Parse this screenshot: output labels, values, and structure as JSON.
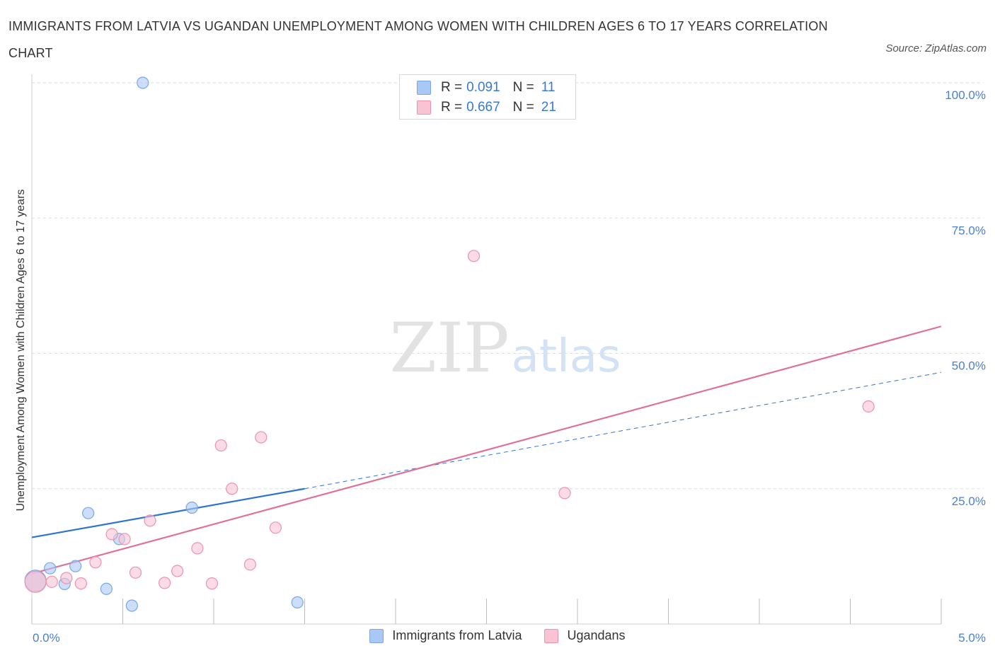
{
  "title": "IMMIGRANTS FROM LATVIA VS UGANDAN UNEMPLOYMENT AMONG WOMEN WITH CHILDREN AGES 6 TO 17 YEARS CORRELATION CHART",
  "source": "Source: ZipAtlas.com",
  "watermark": {
    "zip": "ZIP",
    "atlas": "atlas"
  },
  "legend_top": {
    "rows": [
      {
        "r_label": "R =",
        "r_value": "0.091",
        "n_label": "N =",
        "n_value": "11",
        "color": "#aac8f5",
        "border": "#7aa6e6"
      },
      {
        "r_label": "R =",
        "r_value": "0.667",
        "n_label": "N =",
        "n_value": "21",
        "color": "#f9c3d3",
        "border": "#eb93ad"
      }
    ]
  },
  "legend_bottom": {
    "items": [
      {
        "label": "Immigrants from Latvia",
        "color": "#aac8f5",
        "border": "#7aa6e6"
      },
      {
        "label": "Ugandans",
        "color": "#f9c3d3",
        "border": "#eb93ad"
      }
    ]
  },
  "chart_data": {
    "type": "scatter",
    "title": "IMMIGRANTS FROM LATVIA VS UGANDAN UNEMPLOYMENT AMONG WOMEN WITH CHILDREN AGES 6 TO 17 YEARS CORRELATION CHART",
    "xlabel": "",
    "ylabel": "Unemployment Among Women with Children Ages 6 to 17 years",
    "xlim": [
      0,
      5
    ],
    "ylim": [
      0,
      100
    ],
    "x_ticks": [
      0,
      0.5,
      1.0,
      1.5,
      2.0,
      2.5,
      3.0,
      3.5,
      4.0,
      4.5,
      5.0
    ],
    "x_tick_labels": {
      "0": "0.0%",
      "5": "5.0%"
    },
    "y_ticks": [
      25,
      50,
      75,
      100
    ],
    "y_tick_labels": [
      "25.0%",
      "50.0%",
      "75.0%",
      "100.0%"
    ],
    "grid": "horizontal-dashed",
    "legend": "top-center",
    "series": [
      {
        "name": "Immigrants from Latvia",
        "color": "#aac8f5",
        "stroke": "#7aa6e6",
        "line_color": "#2f74d0",
        "points": [
          {
            "x": 0.02,
            "y": 8.0,
            "large": true
          },
          {
            "x": 0.1,
            "y": 10.3
          },
          {
            "x": 0.18,
            "y": 7.4
          },
          {
            "x": 0.24,
            "y": 10.7
          },
          {
            "x": 0.31,
            "y": 20.5
          },
          {
            "x": 0.41,
            "y": 6.5
          },
          {
            "x": 0.48,
            "y": 15.7
          },
          {
            "x": 0.55,
            "y": 3.4
          },
          {
            "x": 0.61,
            "y": 100.0
          },
          {
            "x": 0.88,
            "y": 21.5
          },
          {
            "x": 1.46,
            "y": 4.0
          }
        ],
        "trend": {
          "x0": 0.0,
          "y0": 16.0,
          "x1": 1.5,
          "y1": 25.0,
          "x_dash_end": 5.0,
          "y_dash_end": 46.5
        }
      },
      {
        "name": "Ugandans",
        "color": "#f9c3d3",
        "stroke": "#eb93ad",
        "line_color": "#e0709a",
        "points": [
          {
            "x": 0.02,
            "y": 7.8,
            "large": true
          },
          {
            "x": 0.11,
            "y": 7.8
          },
          {
            "x": 0.19,
            "y": 8.5
          },
          {
            "x": 0.27,
            "y": 7.5
          },
          {
            "x": 0.35,
            "y": 11.4
          },
          {
            "x": 0.44,
            "y": 16.6
          },
          {
            "x": 0.51,
            "y": 15.7
          },
          {
            "x": 0.57,
            "y": 9.5
          },
          {
            "x": 0.65,
            "y": 19.1
          },
          {
            "x": 0.73,
            "y": 7.6
          },
          {
            "x": 0.8,
            "y": 9.8
          },
          {
            "x": 0.91,
            "y": 14.0
          },
          {
            "x": 0.99,
            "y": 7.5
          },
          {
            "x": 1.04,
            "y": 33.0
          },
          {
            "x": 1.1,
            "y": 25.0
          },
          {
            "x": 1.2,
            "y": 11.0
          },
          {
            "x": 1.26,
            "y": 34.5
          },
          {
            "x": 1.34,
            "y": 17.8
          },
          {
            "x": 2.43,
            "y": 68.0
          },
          {
            "x": 2.93,
            "y": 24.2
          },
          {
            "x": 4.6,
            "y": 40.2
          }
        ],
        "trend": {
          "x0": 0.0,
          "y0": 9.3,
          "x1": 5.0,
          "y1": 55.0
        }
      }
    ]
  }
}
